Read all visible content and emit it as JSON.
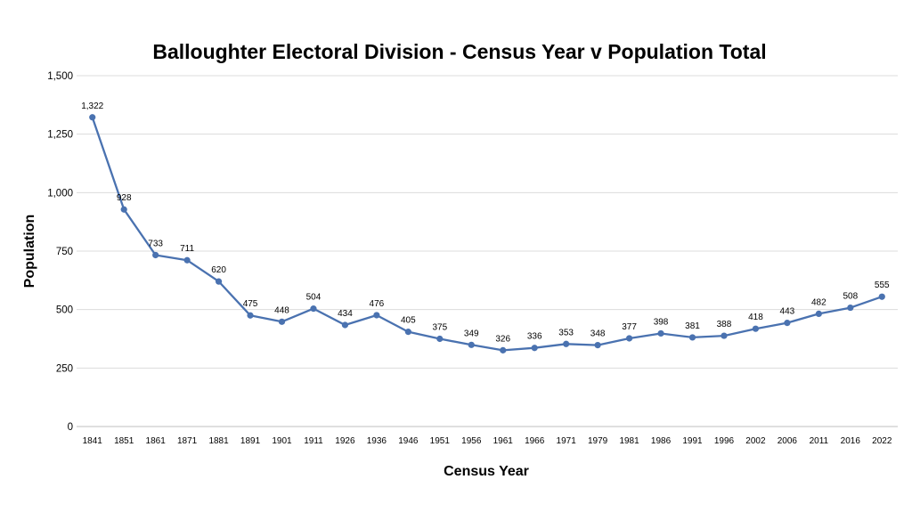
{
  "chart_data": {
    "type": "line",
    "title": "Balloughter Electoral Division - Census Year v Population Total",
    "xlabel": "Census Year",
    "ylabel": "Population",
    "ylim": [
      0,
      1500
    ],
    "yticks": [
      "0",
      "250",
      "500",
      "750",
      "1,000",
      "1,250",
      "1,500"
    ],
    "grid": true,
    "color": "#4a72b0",
    "categories": [
      "1841",
      "1851",
      "1861",
      "1871",
      "1881",
      "1891",
      "1901",
      "1911",
      "1926",
      "1936",
      "1946",
      "1951",
      "1956",
      "1961",
      "1966",
      "1971",
      "1979",
      "1981",
      "1986",
      "1991",
      "1996",
      "2002",
      "2006",
      "2011",
      "2016",
      "2022"
    ],
    "values": [
      1322,
      928,
      733,
      711,
      620,
      475,
      448,
      504,
      434,
      476,
      405,
      375,
      349,
      326,
      336,
      353,
      348,
      377,
      398,
      381,
      388,
      418,
      443,
      482,
      508,
      555
    ],
    "data_labels": [
      "1,322",
      "928",
      "733",
      "711",
      "620",
      "475",
      "448",
      "504",
      "434",
      "476",
      "405",
      "375",
      "349",
      "326",
      "336",
      "353",
      "348",
      "377",
      "398",
      "381",
      "388",
      "418",
      "443",
      "482",
      "508",
      "555"
    ]
  }
}
